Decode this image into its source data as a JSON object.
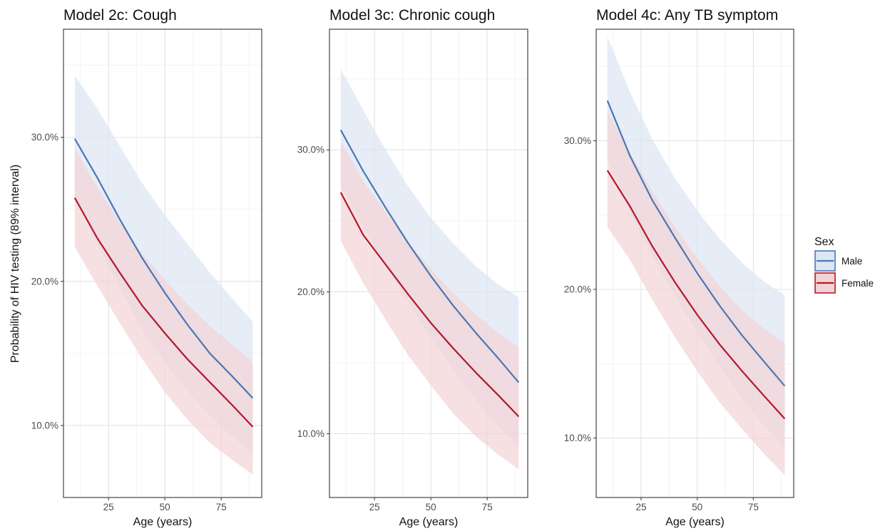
{
  "figure": {
    "ylabel": "Probability of HIV testing (89% interval)"
  },
  "legend": {
    "title": "Sex",
    "items": [
      {
        "label": "Male",
        "line_color": "#4a77b4",
        "fill_color": "#dce6f4"
      },
      {
        "label": "Female",
        "line_color": "#b2182b",
        "fill_color": "#f2d3d5"
      }
    ]
  },
  "chart_data": [
    {
      "type": "line",
      "title": "Model 2c: Cough",
      "xlabel": "Age (years)",
      "xlim": [
        5,
        93
      ],
      "ylim": [
        0.05,
        0.375
      ],
      "xticks": [
        25,
        50,
        75
      ],
      "xtick_labels": [
        "25",
        "50",
        "75"
      ],
      "yticks": [
        0.1,
        0.2,
        0.3
      ],
      "ytick_labels": [
        "10.0%",
        "20.0%",
        "30.0%"
      ],
      "grid": true,
      "x": [
        10,
        20,
        30,
        40,
        50,
        60,
        70,
        80,
        89
      ],
      "series": [
        {
          "name": "Male",
          "y": [
            0.299,
            0.272,
            0.243,
            0.216,
            0.192,
            0.17,
            0.15,
            0.134,
            0.119
          ],
          "lower": [
            0.258,
            0.226,
            0.196,
            0.166,
            0.144,
            0.124,
            0.107,
            0.092,
            0.081
          ],
          "upper": [
            0.343,
            0.32,
            0.294,
            0.268,
            0.246,
            0.226,
            0.206,
            0.188,
            0.172
          ]
        },
        {
          "name": "Female",
          "y": [
            0.258,
            0.23,
            0.206,
            0.183,
            0.164,
            0.146,
            0.13,
            0.114,
            0.099
          ],
          "lower": [
            0.224,
            0.197,
            0.171,
            0.146,
            0.123,
            0.104,
            0.088,
            0.076,
            0.066
          ],
          "upper": [
            0.293,
            0.265,
            0.241,
            0.219,
            0.201,
            0.184,
            0.169,
            0.156,
            0.144
          ]
        }
      ]
    },
    {
      "type": "line",
      "title": "Model 3c: Chronic cough",
      "xlabel": "Age (years)",
      "xlim": [
        5,
        93
      ],
      "ylim": [
        0.055,
        0.385
      ],
      "xticks": [
        25,
        50,
        75
      ],
      "xtick_labels": [
        "25",
        "50",
        "75"
      ],
      "yticks": [
        0.1,
        0.2,
        0.3
      ],
      "ytick_labels": [
        "10.0%",
        "20.0%",
        "30.0%"
      ],
      "grid": true,
      "x": [
        10,
        20,
        30,
        40,
        50,
        60,
        70,
        80,
        89
      ],
      "series": [
        {
          "name": "Male",
          "y": [
            0.314,
            0.285,
            0.259,
            0.234,
            0.211,
            0.19,
            0.171,
            0.153,
            0.136
          ],
          "lower": [
            0.274,
            0.246,
            0.218,
            0.192,
            0.167,
            0.145,
            0.124,
            0.105,
            0.091
          ],
          "upper": [
            0.357,
            0.328,
            0.3,
            0.274,
            0.252,
            0.234,
            0.218,
            0.205,
            0.196
          ]
        },
        {
          "name": "Female",
          "y": [
            0.27,
            0.24,
            0.219,
            0.198,
            0.178,
            0.16,
            0.143,
            0.127,
            0.112
          ],
          "lower": [
            0.236,
            0.206,
            0.18,
            0.155,
            0.134,
            0.114,
            0.098,
            0.085,
            0.075
          ],
          "upper": [
            0.306,
            0.278,
            0.256,
            0.235,
            0.216,
            0.199,
            0.184,
            0.171,
            0.161
          ]
        }
      ]
    },
    {
      "type": "line",
      "title": "Model 4c: Any TB symptom",
      "xlabel": "Age (years)",
      "xlim": [
        5,
        93
      ],
      "ylim": [
        0.06,
        0.375
      ],
      "xticks": [
        25,
        50,
        75
      ],
      "xtick_labels": [
        "25",
        "50",
        "75"
      ],
      "yticks": [
        0.1,
        0.2,
        0.3
      ],
      "ytick_labels": [
        "10.0%",
        "20.0%",
        "30.0%"
      ],
      "grid": true,
      "x": [
        10,
        20,
        30,
        40,
        50,
        60,
        70,
        80,
        89
      ],
      "series": [
        {
          "name": "Male",
          "y": [
            0.327,
            0.29,
            0.26,
            0.235,
            0.211,
            0.189,
            0.169,
            0.151,
            0.135
          ],
          "lower": [
            0.288,
            0.252,
            0.222,
            0.196,
            0.171,
            0.148,
            0.127,
            0.108,
            0.093
          ],
          "upper": [
            0.37,
            0.333,
            0.301,
            0.275,
            0.253,
            0.234,
            0.218,
            0.205,
            0.196
          ]
        },
        {
          "name": "Female",
          "y": [
            0.28,
            0.256,
            0.229,
            0.205,
            0.183,
            0.163,
            0.145,
            0.128,
            0.113
          ],
          "lower": [
            0.242,
            0.22,
            0.193,
            0.168,
            0.145,
            0.124,
            0.106,
            0.089,
            0.075
          ],
          "upper": [
            0.32,
            0.292,
            0.266,
            0.242,
            0.221,
            0.202,
            0.186,
            0.173,
            0.164
          ]
        }
      ]
    }
  ]
}
